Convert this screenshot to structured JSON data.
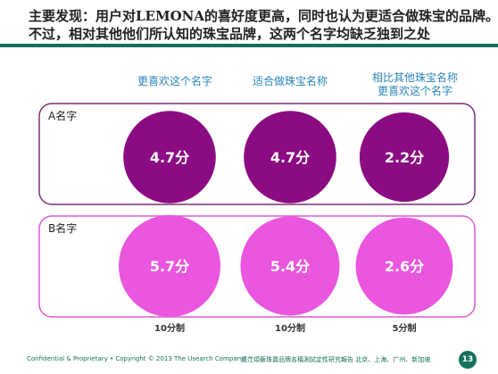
{
  "title_lines": [
    "主要发现：用户对LEMONA的喜好度更高，同时也认为更适合做珠宝的品牌。",
    "不过，相对其他他们所认知的珠宝品牌，这两个名字均缺乏独到之处"
  ],
  "column_headers": [
    [
      "更喜欢这个名字"
    ],
    [
      "适合做珠宝名称"
    ],
    [
      "相比其他珠宝名称",
      "更喜欢这个名字"
    ]
  ],
  "scale_labels": [
    "10分制",
    "10分制",
    "5分制"
  ],
  "footer": {
    "left": "Confidential & Proprietary • Copyright  © 2013 The Usearch Company",
    "right": "謹茳頌藝珠寶品牌名稱測試定性研究報告  北京、上海、广州、新加坡",
    "page_number": "13"
  },
  "colors": {
    "accent_green": "#17705e",
    "header_blue": "#2a84b8",
    "series_a": "#8b0c82",
    "series_a_border": "#7a2e78",
    "series_b": "#ea56dd",
    "series_b_border": "#dc5ad0"
  },
  "chart_data": {
    "type": "bubble",
    "categories": [
      "更喜欢这个名字",
      "适合做珠宝名称",
      "相比其他珠宝名称更喜欢这个名字"
    ],
    "series": [
      {
        "name": "A名字",
        "values": [
          4.7,
          4.7,
          2.2
        ],
        "labels": [
          "4.7分",
          "4.7分",
          "2.2分"
        ]
      },
      {
        "name": "B名字",
        "values": [
          5.7,
          5.4,
          2.6
        ],
        "labels": [
          "5.7分",
          "5.4分",
          "2.6分"
        ]
      }
    ],
    "scale_max": [
      10,
      10,
      5
    ]
  }
}
